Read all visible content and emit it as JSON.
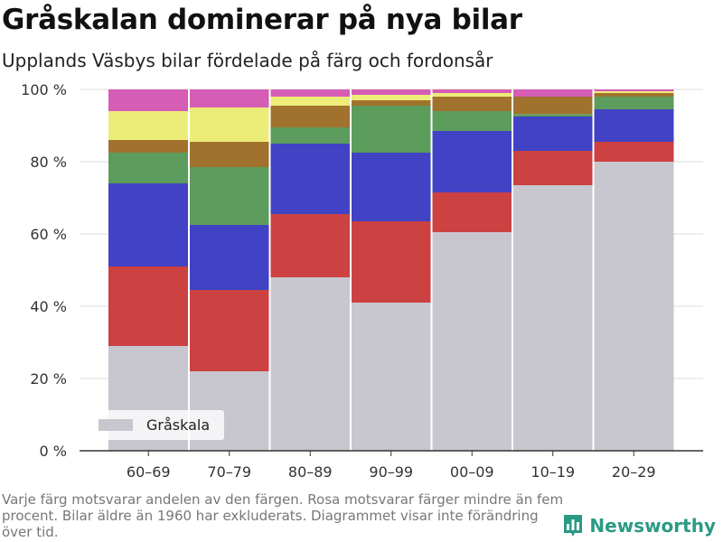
{
  "header": {
    "title": "Gråskalan dominerar på nya bilar",
    "subtitle": "Upplands Väsbys bilar fördelade på färg och fordonsår"
  },
  "footnote": "Varje färg motsvarar andelen av den färgen. Rosa motsvarar färger mindre än fem procent. Bilar äldre än 1960 har exkluderats. Diagrammet visar inte förändring över tid.",
  "brand": {
    "name": "Newsworthy",
    "icon": "bar-chart-icon"
  },
  "chart_data": {
    "type": "bar",
    "stacked": true,
    "title": "Gråskalan dominerar på nya bilar",
    "subtitle": "Upplands Väsbys bilar fördelade på färg och fordonsår",
    "categories": [
      "60–69",
      "70–79",
      "80–89",
      "90–99",
      "00–09",
      "10–19",
      "20–29"
    ],
    "ylim": [
      0,
      100
    ],
    "yticks": [
      0,
      20,
      40,
      60,
      80,
      100
    ],
    "ytick_labels": [
      "0 %",
      "20 %",
      "40 %",
      "60 %",
      "80 %",
      "100 %"
    ],
    "grid": true,
    "legend": {
      "position": "bottom-left",
      "entries": [
        "Gråskala"
      ]
    },
    "series": [
      {
        "name": "Gråskala",
        "color": "#c8c7cf",
        "values": [
          29,
          22,
          48,
          41,
          60.5,
          73.5,
          80
        ]
      },
      {
        "color": "#cc4141",
        "values": [
          22,
          22.5,
          17.5,
          22.5,
          11,
          9.5,
          5.5
        ]
      },
      {
        "color": "#4242c4",
        "values": [
          23,
          18,
          19.5,
          19,
          17,
          9.5,
          9
        ]
      },
      {
        "color": "#5c9c5c",
        "values": [
          8.5,
          16,
          4.5,
          13,
          5.5,
          0.7,
          3.5
        ]
      },
      {
        "color": "#a0722d",
        "values": [
          3.5,
          7,
          6,
          1.5,
          4,
          4.8,
          1
        ]
      },
      {
        "color": "#eced78",
        "values": [
          8,
          9.5,
          2.5,
          1.5,
          1,
          0,
          0.5
        ]
      },
      {
        "color": "#d55db5",
        "values": [
          6,
          5,
          2,
          1.5,
          1,
          2,
          0.5
        ]
      }
    ]
  }
}
